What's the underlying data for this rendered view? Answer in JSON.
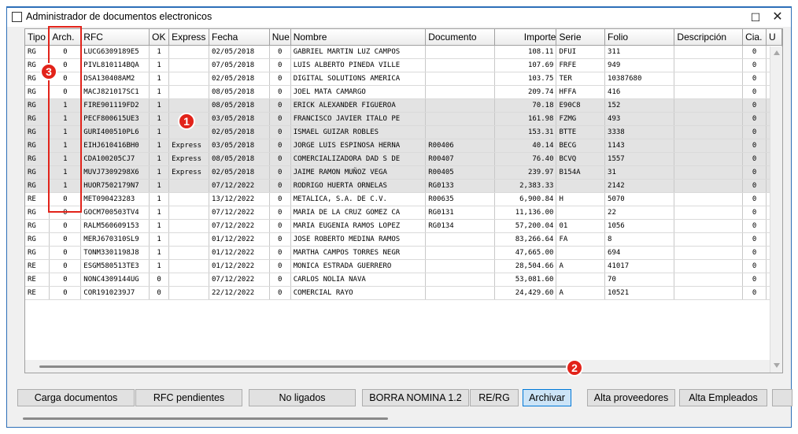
{
  "window": {
    "title": "Administrador de documentos electronicos",
    "maximize_glyph": "☐",
    "close_glyph": "✕"
  },
  "grid": {
    "columns": [
      "Tipo",
      "Arch.",
      "RFC",
      "OK",
      "Express",
      "Fecha",
      "Nue",
      "Nombre",
      "Documento",
      "Importe",
      "Serie",
      "Folio",
      "Descripción",
      "Cia.",
      "U"
    ],
    "rows": [
      {
        "tipo": "RG",
        "arch": "0",
        "rfc": "LUCG6309189E5",
        "ok": "1",
        "express": "",
        "fecha": "02/05/2018",
        "nue": "0",
        "nombre": "GABRIEL MARTIN LUZ CAMPOS",
        "documento": "",
        "importe": "108.11",
        "serie": "DFUI",
        "folio": "311",
        "descripcion": "",
        "cia": "0",
        "selected": false
      },
      {
        "tipo": "RG",
        "arch": "0",
        "rfc": "PIVL810114BQA",
        "ok": "1",
        "express": "",
        "fecha": "07/05/2018",
        "nue": "0",
        "nombre": "LUIS ALBERTO PINEDA VILLE",
        "documento": "",
        "importe": "107.69",
        "serie": "FRFE",
        "folio": "949",
        "descripcion": "",
        "cia": "0",
        "selected": false
      },
      {
        "tipo": "RG",
        "arch": "0",
        "rfc": "DSA130408AM2",
        "ok": "1",
        "express": "",
        "fecha": "02/05/2018",
        "nue": "0",
        "nombre": "DIGITAL SOLUTIONS AMERICA",
        "documento": "",
        "importe": "103.75",
        "serie": "TER",
        "folio": "10387680",
        "descripcion": "",
        "cia": "0",
        "selected": false
      },
      {
        "tipo": "RG",
        "arch": "0",
        "rfc": "MACJ821017SC1",
        "ok": "1",
        "express": "",
        "fecha": "08/05/2018",
        "nue": "0",
        "nombre": "JOEL MATA CAMARGO",
        "documento": "",
        "importe": "209.74",
        "serie": "HFFA",
        "folio": "416",
        "descripcion": "",
        "cia": "0",
        "selected": false
      },
      {
        "tipo": "RG",
        "arch": "1",
        "rfc": "FIRE901119FD2",
        "ok": "1",
        "express": "",
        "fecha": "08/05/2018",
        "nue": "0",
        "nombre": "ERICK ALEXANDER FIGUEROA",
        "documento": "",
        "importe": "70.18",
        "serie": "E90C8",
        "folio": "152",
        "descripcion": "",
        "cia": "0",
        "selected": true
      },
      {
        "tipo": "RG",
        "arch": "1",
        "rfc": "PECF800615UE3",
        "ok": "1",
        "express": "",
        "fecha": "03/05/2018",
        "nue": "0",
        "nombre": "FRANCISCO JAVIER ITALO PE",
        "documento": "",
        "importe": "161.98",
        "serie": "FZMG",
        "folio": "493",
        "descripcion": "",
        "cia": "0",
        "selected": true
      },
      {
        "tipo": "RG",
        "arch": "1",
        "rfc": "GURI400510PL6",
        "ok": "1",
        "express": "",
        "fecha": "02/05/2018",
        "nue": "0",
        "nombre": "ISMAEL GUIZAR ROBLES",
        "documento": "",
        "importe": "153.31",
        "serie": "BTTE",
        "folio": "3338",
        "descripcion": "",
        "cia": "0",
        "selected": true
      },
      {
        "tipo": "RG",
        "arch": "1",
        "rfc": "EIHJ610416BH0",
        "ok": "1",
        "express": "Express",
        "fecha": "03/05/2018",
        "nue": "0",
        "nombre": "JORGE LUIS ESPINOSA HERNA",
        "documento": "R00406",
        "importe": "40.14",
        "serie": "BECG",
        "folio": "1143",
        "descripcion": "",
        "cia": "0",
        "selected": true
      },
      {
        "tipo": "RG",
        "arch": "1",
        "rfc": "CDA100205CJ7",
        "ok": "1",
        "express": "Express",
        "fecha": "08/05/2018",
        "nue": "0",
        "nombre": "COMERCIALIZADORA DAD S DE",
        "documento": "R00407",
        "importe": "76.40",
        "serie": "BCVQ",
        "folio": "1557",
        "descripcion": "",
        "cia": "0",
        "selected": true
      },
      {
        "tipo": "RG",
        "arch": "1",
        "rfc": "MUVJ7309298X6",
        "ok": "1",
        "express": "Express",
        "fecha": "02/05/2018",
        "nue": "0",
        "nombre": "JAIME RAMON MUÑOZ VEGA",
        "documento": "R00405",
        "importe": "239.97",
        "serie": "B154A",
        "folio": "31",
        "descripcion": "",
        "cia": "0",
        "selected": true
      },
      {
        "tipo": "RG",
        "arch": "1",
        "rfc": "HUOR7502179N7",
        "ok": "1",
        "express": "",
        "fecha": "07/12/2022",
        "nue": "0",
        "nombre": "RODRIGO HUERTA ORNELAS",
        "documento": "RG0133",
        "importe": "2,383.33",
        "serie": "",
        "folio": "2142",
        "descripcion": "",
        "cia": "0",
        "selected": true
      },
      {
        "tipo": "RE",
        "arch": "0",
        "rfc": "MET090423283",
        "ok": "1",
        "express": "",
        "fecha": "13/12/2022",
        "nue": "0",
        "nombre": "METALICA, S.A. DE C.V.",
        "documento": "R00635",
        "importe": "6,900.84",
        "serie": "H",
        "folio": "5070",
        "descripcion": "",
        "cia": "0",
        "selected": false
      },
      {
        "tipo": "RG",
        "arch": "0",
        "rfc": "GOCM700503TV4",
        "ok": "1",
        "express": "",
        "fecha": "07/12/2022",
        "nue": "0",
        "nombre": "MARIA DE LA CRUZ GOMEZ CA",
        "documento": "RG0131",
        "importe": "11,136.00",
        "serie": "",
        "folio": "22",
        "descripcion": "",
        "cia": "0",
        "selected": false
      },
      {
        "tipo": "RG",
        "arch": "0",
        "rfc": "RALM560609153",
        "ok": "1",
        "express": "",
        "fecha": "07/12/2022",
        "nue": "0",
        "nombre": "MARIA EUGENIA RAMOS LOPEZ",
        "documento": "RG0134",
        "importe": "57,200.04",
        "serie": "01",
        "folio": "1056",
        "descripcion": "",
        "cia": "0",
        "selected": false
      },
      {
        "tipo": "RG",
        "arch": "0",
        "rfc": "MERJ670310SL9",
        "ok": "1",
        "express": "",
        "fecha": "01/12/2022",
        "nue": "0",
        "nombre": "JOSE ROBERTO MEDINA RAMOS",
        "documento": "",
        "importe": "83,266.64",
        "serie": "FA",
        "folio": "8",
        "descripcion": "",
        "cia": "0",
        "selected": false
      },
      {
        "tipo": "RG",
        "arch": "0",
        "rfc": "TONM3301198J8",
        "ok": "1",
        "express": "",
        "fecha": "01/12/2022",
        "nue": "0",
        "nombre": "MARTHA CAMPOS TORRES NEGR",
        "documento": "",
        "importe": "47,665.00",
        "serie": "",
        "folio": "694",
        "descripcion": "",
        "cia": "0",
        "selected": false
      },
      {
        "tipo": "RE",
        "arch": "0",
        "rfc": "ESGM580513TE3",
        "ok": "1",
        "express": "",
        "fecha": "01/12/2022",
        "nue": "0",
        "nombre": "MONICA ESTRADA GUERRERO",
        "documento": "",
        "importe": "28,504.66",
        "serie": "A",
        "folio": "41017",
        "descripcion": "",
        "cia": "0",
        "selected": false
      },
      {
        "tipo": "RE",
        "arch": "0",
        "rfc": "NONC4309144UG",
        "ok": "0",
        "express": "",
        "fecha": "07/12/2022",
        "nue": "0",
        "nombre": "CARLOS NOLIA NAVA",
        "documento": "",
        "importe": "53,081.60",
        "serie": "",
        "folio": "70",
        "descripcion": "",
        "cia": "0",
        "selected": false
      },
      {
        "tipo": "RE",
        "arch": "0",
        "rfc": "COR1910239J7",
        "ok": "0",
        "express": "",
        "fecha": "22/12/2022",
        "nue": "0",
        "nombre": "COMERCIAL RAYO",
        "documento": "",
        "importe": "24,429.60",
        "serie": "A",
        "folio": "10521",
        "descripcion": "",
        "cia": "0",
        "selected": false
      }
    ]
  },
  "buttons": [
    "Carga documentos",
    "RFC pendientes",
    "No ligados",
    "BORRA NOMINA 1.2",
    "RE/RG",
    "Archivar",
    "Alta proveedores",
    "Alta Empleados"
  ],
  "annotations": {
    "badge1": "1",
    "badge2": "2",
    "badge3": "3",
    "highlight_color": "#e2231a"
  }
}
